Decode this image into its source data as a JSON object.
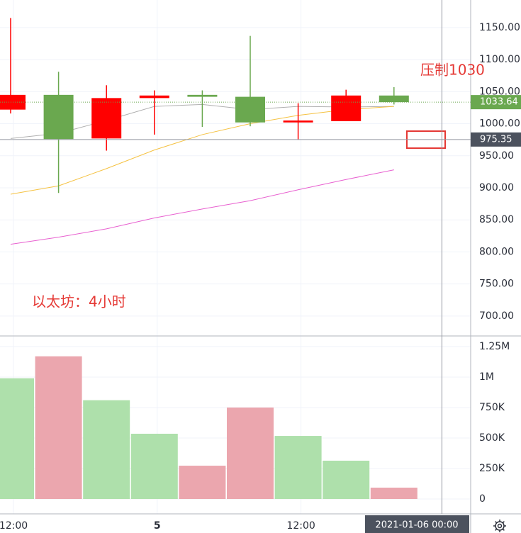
{
  "chart_data": {
    "type": "candlestick",
    "categories": [
      "12:00",
      null,
      null,
      "5",
      null,
      null,
      "12:00",
      null,
      null
    ],
    "open": [
      1022,
      1045,
      977,
      1040,
      1045,
      1042,
      1002,
      1004,
      1044
    ],
    "high": [
      1165,
      1081,
      1060,
      1052,
      1052,
      1137,
      1032,
      1053,
      1057
    ],
    "low": [
      1016,
      892,
      958,
      983,
      995,
      996,
      975,
      1004,
      1030
    ],
    "close": [
      1045,
      976,
      1040,
      1044,
      1042,
      1002,
      1005,
      1044,
      1033.64
    ],
    "up_color": "#ff0000",
    "down_color": "#6aa84f",
    "ylim": [
      670,
      1193
    ],
    "yticks": [
      {
        "value": 1150,
        "label": "1150.00"
      },
      {
        "value": 1100,
        "label": "1100.00"
      },
      {
        "value": 1050,
        "label": "1050.00"
      },
      {
        "value": 1000,
        "label": "1000.00"
      },
      {
        "value": 950,
        "label": "950.00"
      },
      {
        "value": 900,
        "label": "900.00"
      },
      {
        "value": 850,
        "label": "850.00"
      },
      {
        "value": 800,
        "label": "800.00"
      },
      {
        "value": 750,
        "label": "750.00"
      },
      {
        "value": 700,
        "label": "700.00"
      }
    ],
    "grid": true,
    "lines": [
      {
        "color": "#b0b0b0",
        "values": [
          977,
          985,
          1005,
          1027,
          1030,
          1022,
          1027,
          1026,
          1027
        ]
      },
      {
        "color": "#f5c242",
        "values": [
          890,
          903,
          930,
          959,
          983,
          1000,
          1013,
          1022,
          1027
        ]
      },
      {
        "color": "#e860d0",
        "values": [
          812,
          823,
          836,
          853,
          867,
          880,
          897,
          913,
          928
        ]
      }
    ],
    "last_price": 1033.64,
    "last_price_color": "#6aa84f",
    "crosshair": {
      "value": 975.35,
      "label": "2021-01-06 00:00"
    },
    "volume": {
      "values": [
        990000,
        1170000,
        810000,
        535000,
        273000,
        750000,
        517000,
        314000,
        93000
      ],
      "colors": [
        "#aee0ab",
        "#eba6ae",
        "#aee0ab",
        "#aee0ab",
        "#eba6ae",
        "#eba6ae",
        "#aee0ab",
        "#aee0ab",
        "#eba6ae"
      ],
      "ylim": [
        -122000,
        1331000
      ],
      "yticks": [
        {
          "value": 1250000,
          "label": "1.25M"
        },
        {
          "value": 1000000,
          "label": "1M"
        },
        {
          "value": 750000,
          "label": "750K"
        },
        {
          "value": 500000,
          "label": "500K"
        },
        {
          "value": 250000,
          "label": "250K"
        },
        0
      ]
    },
    "annotations": [
      {
        "text": "压制1030",
        "color": "#e53935"
      },
      {
        "text": "以太坊：4小时",
        "color": "#e53935"
      }
    ]
  }
}
